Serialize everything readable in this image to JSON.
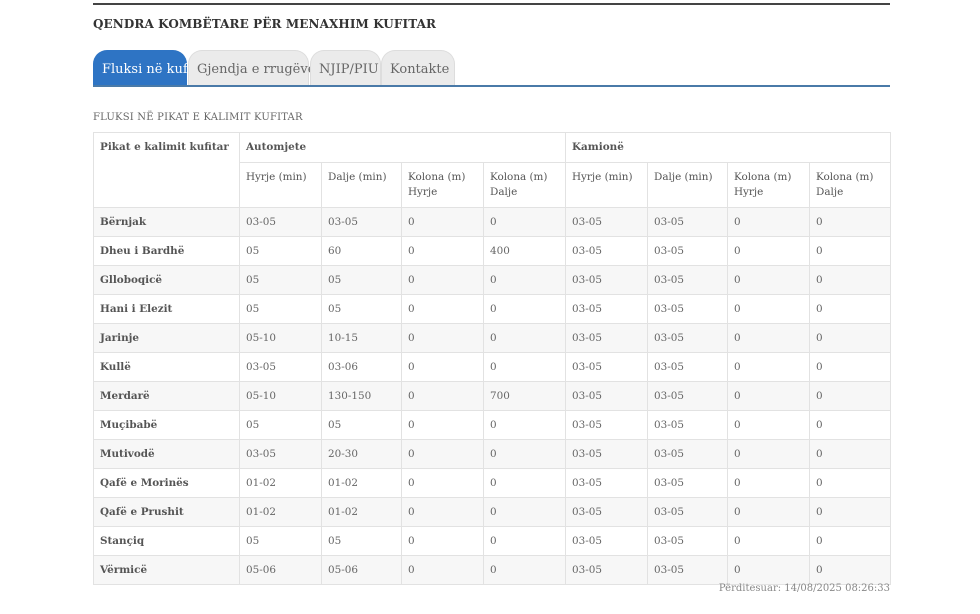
{
  "site_title": "QENDRA KOMBËTARE PËR MENAXHIM KUFITAR",
  "tabs": [
    {
      "label": "Fluksi në kufi",
      "active": true
    },
    {
      "label": "Gjendja e rrugëve",
      "active": false
    },
    {
      "label": "NJIP/PIU",
      "active": false
    },
    {
      "label": "Kontakte",
      "active": false
    }
  ],
  "section_title": "FLUKSI NË PIKAT E KALIMIT KUFITAR",
  "table": {
    "corner_header": "Pikat e kalimit kufitar",
    "groups": [
      "Automjete",
      "Kamionë"
    ],
    "subheaders": [
      "Hyrje (min)",
      "Dalje (min)",
      "Kolona (m) Hyrje",
      "Kolona (m) Dalje",
      "Hyrje (min)",
      "Dalje (min)",
      "Kolona (m) Hyrje",
      "Kolona (m) Dalje"
    ],
    "rows": [
      {
        "name": "Bërnjak",
        "values": [
          "03-05",
          "03-05",
          "0",
          "0",
          "03-05",
          "03-05",
          "0",
          "0"
        ]
      },
      {
        "name": "Dheu i Bardhë",
        "values": [
          "05",
          "60",
          "0",
          "400",
          "03-05",
          "03-05",
          "0",
          "0"
        ]
      },
      {
        "name": "Glloboqicë",
        "values": [
          "05",
          "05",
          "0",
          "0",
          "03-05",
          "03-05",
          "0",
          "0"
        ]
      },
      {
        "name": "Hani i Elezit",
        "values": [
          "05",
          "05",
          "0",
          "0",
          "03-05",
          "03-05",
          "0",
          "0"
        ]
      },
      {
        "name": "Jarinje",
        "values": [
          "05-10",
          "10-15",
          "0",
          "0",
          "03-05",
          "03-05",
          "0",
          "0"
        ]
      },
      {
        "name": "Kullë",
        "values": [
          "03-05",
          "03-06",
          "0",
          "0",
          "03-05",
          "03-05",
          "0",
          "0"
        ]
      },
      {
        "name": "Merdarë",
        "values": [
          "05-10",
          "130-150",
          "0",
          "700",
          "03-05",
          "03-05",
          "0",
          "0"
        ]
      },
      {
        "name": "Muçibabë",
        "values": [
          "05",
          "05",
          "0",
          "0",
          "03-05",
          "03-05",
          "0",
          "0"
        ]
      },
      {
        "name": "Mutivodë",
        "values": [
          "03-05",
          "20-30",
          "0",
          "0",
          "03-05",
          "03-05",
          "0",
          "0"
        ]
      },
      {
        "name": "Qafë e Morinës",
        "values": [
          "01-02",
          "01-02",
          "0",
          "0",
          "03-05",
          "03-05",
          "0",
          "0"
        ]
      },
      {
        "name": "Qafë e Prushit",
        "values": [
          "01-02",
          "01-02",
          "0",
          "0",
          "03-05",
          "03-05",
          "0",
          "0"
        ]
      },
      {
        "name": "Stançiq",
        "values": [
          "05",
          "05",
          "0",
          "0",
          "03-05",
          "03-05",
          "0",
          "0"
        ]
      },
      {
        "name": "Vërmicë",
        "values": [
          "05-06",
          "05-06",
          "0",
          "0",
          "03-05",
          "03-05",
          "0",
          "0"
        ]
      }
    ]
  },
  "updated": "Përditesuar: 14/08/2025 08:26:33",
  "colors": {
    "accent": "#2e74c4",
    "tab_line": "#4a7aa8"
  }
}
